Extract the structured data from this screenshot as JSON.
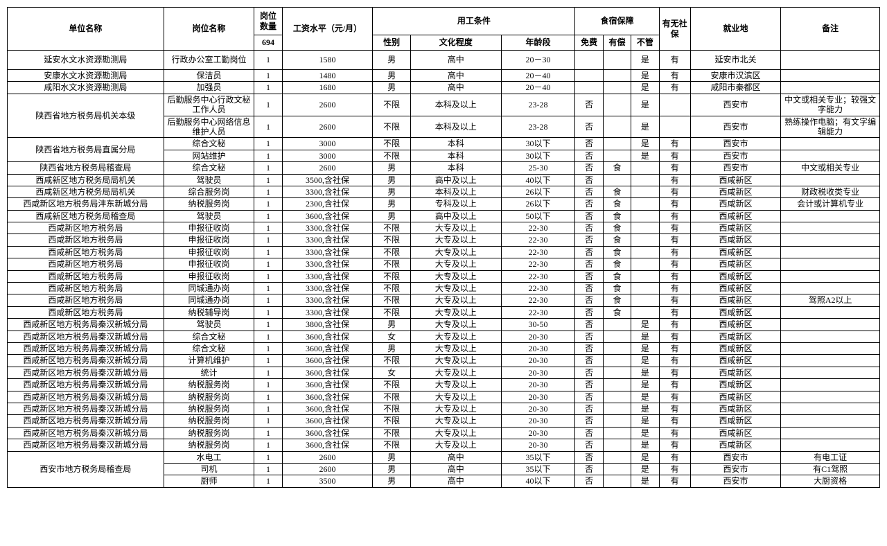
{
  "header": {
    "unit": "单位名称",
    "post": "岗位名称",
    "qty_label": "岗位数量",
    "qty_total": "694",
    "salary": "工资水平（元/月）",
    "cond": "用工条件",
    "gender": "性别",
    "edu": "文化程度",
    "age": "年龄段",
    "board": "食宿保障",
    "free": "免费",
    "paid": "有偿",
    "none": "不管",
    "ins": "有无社保",
    "loc": "就业地",
    "note": "备注"
  },
  "rows": [
    {
      "unit": "延安水文水资源勘测局",
      "post": "行政办公室工勤岗位",
      "qty": "1",
      "sal": "1580",
      "gen": "男",
      "edu": "高中",
      "age": "20－30",
      "free": "",
      "paid": "",
      "none": "是",
      "ins": "有",
      "loc": "延安市北关",
      "note": "",
      "post_h": "h-med"
    },
    {
      "unit": "安康水文水资源勘测局",
      "post": "保洁员",
      "qty": "1",
      "sal": "1480",
      "gen": "男",
      "edu": "高中",
      "age": "20－40",
      "free": "",
      "paid": "",
      "none": "是",
      "ins": "有",
      "loc": "安康市汉滨区",
      "note": ""
    },
    {
      "unit": "咸阳水文水资源勘测局",
      "post": "加强员",
      "qty": "1",
      "sal": "1680",
      "gen": "男",
      "edu": "高中",
      "age": "20－40",
      "free": "",
      "paid": "",
      "none": "是",
      "ins": "有",
      "loc": "咸阳市秦都区",
      "note": ""
    },
    {
      "unit": "陕西省地方税务局机关本级",
      "unit_rs": 2,
      "post": "后勤服务中心行政文秘工作人员",
      "qty": "1",
      "sal": "2600",
      "gen": "不限",
      "edu": "本科及以上",
      "age": "23-28",
      "free": "否",
      "paid": "",
      "none": "是",
      "ins": "",
      "loc": "西安市",
      "note": "中文或相关专业；较强文字能力",
      "post_h": "h-med"
    },
    {
      "post": "后勤服务中心网络信息维护人员",
      "qty": "1",
      "sal": "2600",
      "gen": "不限",
      "edu": "本科及以上",
      "age": "23-28",
      "free": "否",
      "paid": "",
      "none": "是",
      "ins": "",
      "loc": "西安市",
      "note": "熟练操作电脑；有文字编辑能力",
      "post_h": "h-med"
    },
    {
      "unit": "陕西省地方税务局直属分局",
      "unit_rs": 2,
      "post": "综合文秘",
      "qty": "1",
      "sal": "3000",
      "gen": "不限",
      "edu": "本科",
      "age": "30以下",
      "free": "否",
      "paid": "",
      "none": "是",
      "ins": "有",
      "loc": "西安市",
      "note": ""
    },
    {
      "post": "网站维护",
      "qty": "1",
      "sal": "3000",
      "gen": "不限",
      "edu": "本科",
      "age": "30以下",
      "free": "否",
      "paid": "",
      "none": "是",
      "ins": "有",
      "loc": "西安市",
      "note": ""
    },
    {
      "unit": "陕西省地方税务局稽查局",
      "post": "综合文秘",
      "qty": "1",
      "sal": "2600",
      "gen": "男",
      "edu": "本科",
      "age": "25-30",
      "free": "否",
      "paid": "食",
      "none": "",
      "ins": "有",
      "loc": "西安市",
      "note": "中文或相关专业"
    },
    {
      "unit": "西咸新区地方税务局局机关",
      "post": "驾驶员",
      "qty": "1",
      "sal": "3500,含社保",
      "gen": "男",
      "edu": "高中及以上",
      "age": "40以下",
      "free": "否",
      "paid": "",
      "none": "",
      "ins": "有",
      "loc": "西咸新区",
      "note": ""
    },
    {
      "unit": "西咸新区地方税务局局机关",
      "post": "综合服务岗",
      "qty": "1",
      "sal": "3300,含社保",
      "gen": "男",
      "edu": "本科及以上",
      "age": "26以下",
      "free": "否",
      "paid": "食",
      "none": "",
      "ins": "有",
      "loc": "西咸新区",
      "note": "财政税收类专业"
    },
    {
      "unit": "西咸新区地方税务局沣东新城分局",
      "post": "纳税服务岗",
      "qty": "1",
      "sal": "2300,含社保",
      "gen": "男",
      "edu": "专科及以上",
      "age": "26以下",
      "free": "否",
      "paid": "食",
      "none": "",
      "ins": "有",
      "loc": "西咸新区",
      "note": "会计或计算机专业"
    },
    {
      "unit": "西咸新区地方税务局稽查局",
      "post": "驾驶员",
      "qty": "1",
      "sal": "3600,含社保",
      "gen": "男",
      "edu": "高中及以上",
      "age": "50以下",
      "free": "否",
      "paid": "食",
      "none": "",
      "ins": "有",
      "loc": "西咸新区",
      "note": ""
    },
    {
      "unit": "西咸新区地方税务局",
      "post": "申报征收岗",
      "qty": "1",
      "sal": "3300,含社保",
      "gen": "不限",
      "edu": "大专及以上",
      "age": "22-30",
      "free": "否",
      "paid": "食",
      "none": "",
      "ins": "有",
      "loc": "西咸新区",
      "note": ""
    },
    {
      "unit": "西咸新区地方税务局",
      "post": "申报征收岗",
      "qty": "1",
      "sal": "3300,含社保",
      "gen": "不限",
      "edu": "大专及以上",
      "age": "22-30",
      "free": "否",
      "paid": "食",
      "none": "",
      "ins": "有",
      "loc": "西咸新区",
      "note": ""
    },
    {
      "unit": "西咸新区地方税务局",
      "post": "申报征收岗",
      "qty": "1",
      "sal": "3300,含社保",
      "gen": "不限",
      "edu": "大专及以上",
      "age": "22-30",
      "free": "否",
      "paid": "食",
      "none": "",
      "ins": "有",
      "loc": "西咸新区",
      "note": ""
    },
    {
      "unit": "西咸新区地方税务局",
      "post": "申报征收岗",
      "qty": "1",
      "sal": "3300,含社保",
      "gen": "不限",
      "edu": "大专及以上",
      "age": "22-30",
      "free": "否",
      "paid": "食",
      "none": "",
      "ins": "有",
      "loc": "西咸新区",
      "note": ""
    },
    {
      "unit": "西咸新区地方税务局",
      "post": "申报征收岗",
      "qty": "1",
      "sal": "3300,含社保",
      "gen": "不限",
      "edu": "大专及以上",
      "age": "22-30",
      "free": "否",
      "paid": "食",
      "none": "",
      "ins": "有",
      "loc": "西咸新区",
      "note": ""
    },
    {
      "unit": "西咸新区地方税务局",
      "post": "同城通办岗",
      "qty": "1",
      "sal": "3300,含社保",
      "gen": "不限",
      "edu": "大专及以上",
      "age": "22-30",
      "free": "否",
      "paid": "食",
      "none": "",
      "ins": "有",
      "loc": "西咸新区",
      "note": ""
    },
    {
      "unit": "西咸新区地方税务局",
      "post": "同城通办岗",
      "qty": "1",
      "sal": "3300,含社保",
      "gen": "不限",
      "edu": "大专及以上",
      "age": "22-30",
      "free": "否",
      "paid": "食",
      "none": "",
      "ins": "有",
      "loc": "西咸新区",
      "note": "驾照A2以上"
    },
    {
      "unit": "西咸新区地方税务局",
      "post": "纳税辅导岗",
      "qty": "1",
      "sal": "3300,含社保",
      "gen": "不限",
      "edu": "大专及以上",
      "age": "22-30",
      "free": "否",
      "paid": "食",
      "none": "",
      "ins": "有",
      "loc": "西咸新区",
      "note": ""
    },
    {
      "unit": "西咸新区地方税务局秦汉新城分局",
      "post": "驾驶员",
      "qty": "1",
      "sal": "3800,含社保",
      "gen": "男",
      "edu": "大专及以上",
      "age": "30-50",
      "free": "否",
      "paid": "",
      "none": "是",
      "ins": "有",
      "loc": "西咸新区",
      "note": ""
    },
    {
      "unit": "西咸新区地方税务局秦汉新城分局",
      "post": "综合文秘",
      "qty": "1",
      "sal": "3600,含社保",
      "gen": "女",
      "edu": "大专及以上",
      "age": "20-30",
      "free": "否",
      "paid": "",
      "none": "是",
      "ins": "有",
      "loc": "西咸新区",
      "note": ""
    },
    {
      "unit": "西咸新区地方税务局秦汉新城分局",
      "post": "综合文秘",
      "qty": "1",
      "sal": "3600,含社保",
      "gen": "男",
      "edu": "大专及以上",
      "age": "20-30",
      "free": "否",
      "paid": "",
      "none": "是",
      "ins": "有",
      "loc": "西咸新区",
      "note": ""
    },
    {
      "unit": "西咸新区地方税务局秦汉新城分局",
      "post": "计算机维护",
      "qty": "1",
      "sal": "3600,含社保",
      "gen": "不限",
      "edu": "大专及以上",
      "age": "20-30",
      "free": "否",
      "paid": "",
      "none": "是",
      "ins": "有",
      "loc": "西咸新区",
      "note": ""
    },
    {
      "unit": "西咸新区地方税务局秦汉新城分局",
      "post": "统计",
      "qty": "1",
      "sal": "3600,含社保",
      "gen": "女",
      "edu": "大专及以上",
      "age": "20-30",
      "free": "否",
      "paid": "",
      "none": "是",
      "ins": "有",
      "loc": "西咸新区",
      "note": ""
    },
    {
      "unit": "西咸新区地方税务局秦汉新城分局",
      "post": "纳税服务岗",
      "qty": "1",
      "sal": "3600,含社保",
      "gen": "不限",
      "edu": "大专及以上",
      "age": "20-30",
      "free": "否",
      "paid": "",
      "none": "是",
      "ins": "有",
      "loc": "西咸新区",
      "note": ""
    },
    {
      "unit": "西咸新区地方税务局秦汉新城分局",
      "post": "纳税服务岗",
      "qty": "1",
      "sal": "3600,含社保",
      "gen": "不限",
      "edu": "大专及以上",
      "age": "20-30",
      "free": "否",
      "paid": "",
      "none": "是",
      "ins": "有",
      "loc": "西咸新区",
      "note": ""
    },
    {
      "unit": "西咸新区地方税务局秦汉新城分局",
      "post": "纳税服务岗",
      "qty": "1",
      "sal": "3600,含社保",
      "gen": "不限",
      "edu": "大专及以上",
      "age": "20-30",
      "free": "否",
      "paid": "",
      "none": "是",
      "ins": "有",
      "loc": "西咸新区",
      "note": ""
    },
    {
      "unit": "西咸新区地方税务局秦汉新城分局",
      "post": "纳税服务岗",
      "qty": "1",
      "sal": "3600,含社保",
      "gen": "不限",
      "edu": "大专及以上",
      "age": "20-30",
      "free": "否",
      "paid": "",
      "none": "是",
      "ins": "有",
      "loc": "西咸新区",
      "note": ""
    },
    {
      "unit": "西咸新区地方税务局秦汉新城分局",
      "post": "纳税服务岗",
      "qty": "1",
      "sal": "3600,含社保",
      "gen": "不限",
      "edu": "大专及以上",
      "age": "20-30",
      "free": "否",
      "paid": "",
      "none": "是",
      "ins": "有",
      "loc": "西咸新区",
      "note": ""
    },
    {
      "unit": "西咸新区地方税务局秦汉新城分局",
      "post": "纳税服务岗",
      "qty": "1",
      "sal": "3600,含社保",
      "gen": "不限",
      "edu": "大专及以上",
      "age": "20-30",
      "free": "否",
      "paid": "",
      "none": "是",
      "ins": "有",
      "loc": "西咸新区",
      "note": ""
    },
    {
      "unit": "西安市地方税务局稽查局",
      "unit_rs": 3,
      "post": "水电工",
      "qty": "1",
      "sal": "2600",
      "gen": "男",
      "edu": "高中",
      "age": "35以下",
      "free": "否",
      "paid": "",
      "none": "是",
      "ins": "有",
      "loc": "西安市",
      "note": "有电工证"
    },
    {
      "post": "司机",
      "qty": "1",
      "sal": "2600",
      "gen": "男",
      "edu": "高中",
      "age": "35以下",
      "free": "否",
      "paid": "",
      "none": "是",
      "ins": "有",
      "loc": "西安市",
      "note": "有C1驾照"
    },
    {
      "post": "厨师",
      "qty": "1",
      "sal": "3500",
      "gen": "男",
      "edu": "高中",
      "age": "40以下",
      "free": "否",
      "paid": "",
      "none": "是",
      "ins": "有",
      "loc": "西安市",
      "note": "大厨资格"
    }
  ],
  "colwidths": [
    "190",
    "110",
    "34",
    "110",
    "46",
    "110",
    "90",
    "34",
    "34",
    "34",
    "38",
    "110",
    "120"
  ]
}
